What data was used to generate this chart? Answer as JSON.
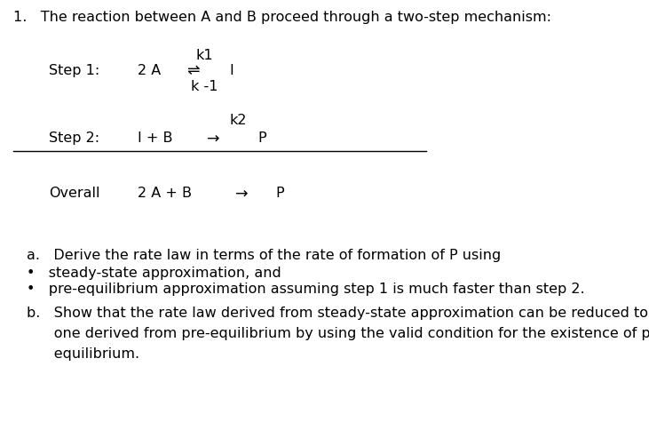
{
  "bg_color": "#ffffff",
  "text_color": "#000000",
  "title": "1.   The reaction between A and B proceed through a two-step mechanism:",
  "step1_k1": "k1",
  "step1_label": "Step 1:",
  "step1_reactant": "2 A",
  "step1_arrow": "⇌",
  "step1_product": "I",
  "step1_k_minus1": "k -1",
  "step2_k2": "k2",
  "step2_label": "Step 2:",
  "step2_reactant": "I + B",
  "step2_arrow": "→",
  "step2_product": "P",
  "overall_label": "Overall",
  "overall_reactant": "2 A + B",
  "overall_arrow": "→",
  "overall_product": "P",
  "part_a": "a.   Derive the rate law in terms of the rate of formation of P using",
  "bullet1": "•   steady-state approximation, and",
  "bullet2": "•   pre-equilibrium approximation assuming step 1 is much faster than step 2.",
  "part_b_line1": "b.   Show that the rate law derived from steady-state approximation can be reduced to the",
  "part_b_line2": "      one derived from pre-equilibrium by using the valid condition for the existence of pre-",
  "part_b_line3": "      equilibrium.",
  "font_size": 11.5,
  "figsize": [
    7.31,
    4.93
  ],
  "dpi": 100
}
